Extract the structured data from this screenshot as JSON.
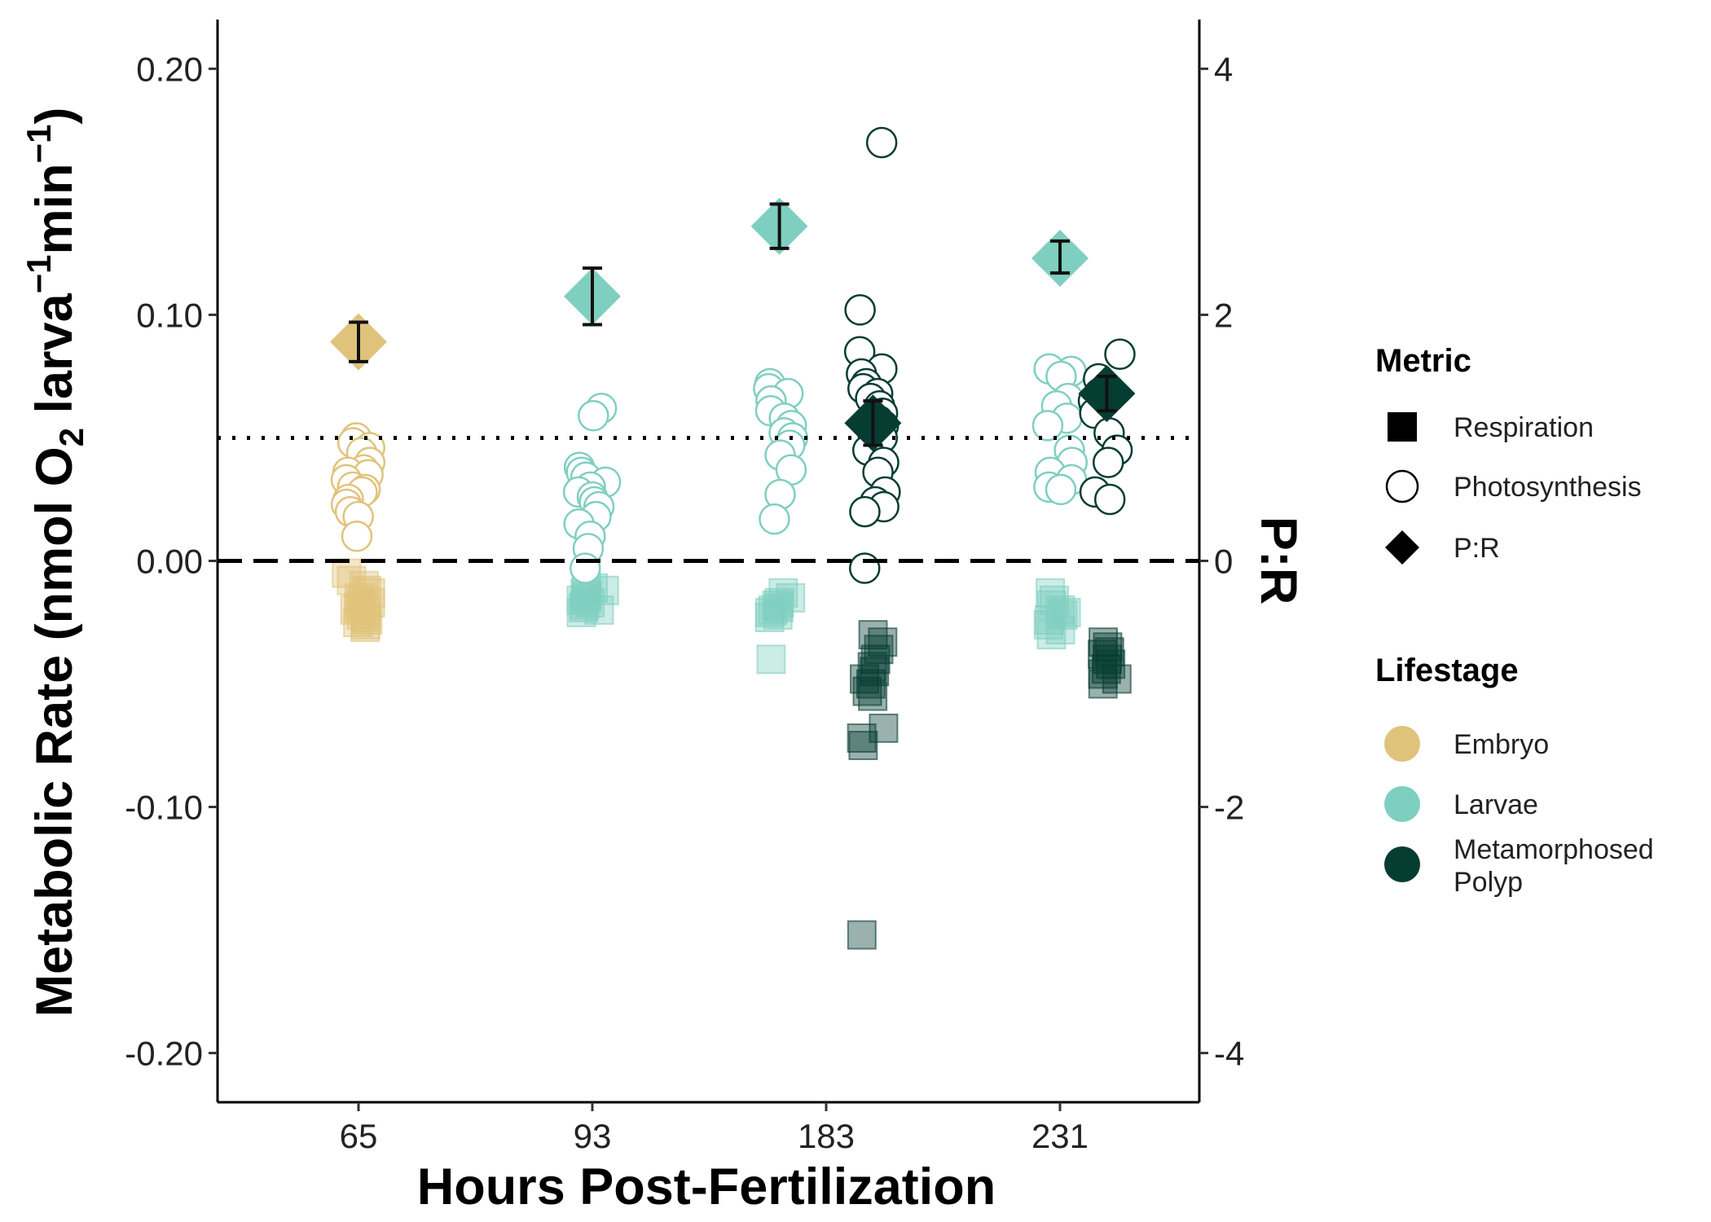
{
  "chart_data": {
    "type": "scatter",
    "title": "",
    "xlabel": "Hours Post-Fertilization",
    "ylabel": "Metabolic Rate (nmol O",
    "ylabel_sub": "2",
    "ylabel_mid": " larva",
    "ylabel_sup1": "−1",
    "ylabel_mid2": "min",
    "ylabel_sup2": "−1",
    "ylabel_end": ")",
    "y2label": "P:R",
    "categories": [
      "65",
      "93",
      "183",
      "231"
    ],
    "y_ticks": [
      "0.20",
      "0.10",
      "0.00",
      "-0.10",
      "-0.20"
    ],
    "y2_ticks": [
      "4",
      "2",
      "0",
      "-2",
      "-4"
    ],
    "ylim": [
      -0.22,
      0.22
    ],
    "y2lim": [
      -4.4,
      4.4
    ],
    "reference_lines": [
      {
        "axis": "y2",
        "value": 1,
        "style": "dotted"
      },
      {
        "axis": "y",
        "value": 0,
        "style": "dashed"
      }
    ],
    "grid": false,
    "legend_position": "right",
    "legend": {
      "metric_title": "Metric",
      "metric_items": [
        {
          "label": "Respiration",
          "shape": "square"
        },
        {
          "label": "Photosynthesis",
          "shape": "circle"
        },
        {
          "label": "P:R",
          "shape": "diamond"
        }
      ],
      "lifestage_title": "Lifestage",
      "lifestage_items": [
        {
          "label": "Embryo",
          "color": "#e0c37b"
        },
        {
          "label": "Larvae",
          "color": "#7fcfc0"
        },
        {
          "label": "Metamorphosed",
          "label2": "Polyp",
          "color": "#063d33"
        }
      ]
    },
    "series": [
      {
        "group": "65-Embryo",
        "x": 1,
        "color": "#e0c37b",
        "photosynthesis": [
          0.05,
          0.048,
          0.046,
          0.044,
          0.04,
          0.037,
          0.036,
          0.035,
          0.033,
          0.03,
          0.029,
          0.028,
          0.025,
          0.023,
          0.02,
          0.018,
          0.01
        ],
        "respiration": [
          -0.005,
          -0.008,
          -0.01,
          -0.012,
          -0.013,
          -0.015,
          -0.016,
          -0.017,
          -0.018,
          -0.019,
          -0.02,
          -0.021,
          -0.022,
          -0.023,
          -0.024,
          -0.025,
          -0.026,
          -0.027
        ],
        "pr_mean": 1.78,
        "pr_lo": 1.62,
        "pr_hi": 1.94
      },
      {
        "group": "93-Larvae",
        "x": 2,
        "color": "#7fcfc0",
        "photosynthesis": [
          0.062,
          0.059,
          0.038,
          0.036,
          0.034,
          0.032,
          0.03,
          0.028,
          0.026,
          0.024,
          0.022,
          0.018,
          0.015,
          0.01,
          0.005,
          -0.003
        ],
        "respiration": [
          -0.01,
          -0.011,
          -0.012,
          -0.013,
          -0.014,
          -0.015,
          -0.016,
          -0.017,
          -0.018,
          -0.019,
          -0.02,
          -0.021
        ],
        "pr_mean": 2.15,
        "pr_lo": 1.92,
        "pr_hi": 2.38
      },
      {
        "group": "183-Larvae",
        "x": 2.8,
        "color": "#7fcfc0",
        "photosynthesis": [
          0.072,
          0.07,
          0.068,
          0.065,
          0.061,
          0.058,
          0.055,
          0.052,
          0.05,
          0.047,
          0.043,
          0.037,
          0.027,
          0.017
        ],
        "respiration": [
          -0.013,
          -0.015,
          -0.017,
          -0.018,
          -0.019,
          -0.02,
          -0.021,
          -0.022,
          -0.023,
          -0.04
        ],
        "pr_mean": 2.72,
        "pr_lo": 2.54,
        "pr_hi": 2.9
      },
      {
        "group": "183-Polyp",
        "x": 3.2,
        "color": "#063d33",
        "photosynthesis": [
          0.17,
          0.102,
          0.085,
          0.078,
          0.076,
          0.072,
          0.07,
          0.068,
          0.066,
          0.063,
          0.06,
          0.057,
          0.055,
          0.052,
          0.05,
          0.045,
          0.04,
          0.036,
          0.028,
          0.024,
          0.022,
          0.02,
          -0.003
        ],
        "respiration": [
          -0.03,
          -0.033,
          -0.036,
          -0.04,
          -0.043,
          -0.045,
          -0.048,
          -0.05,
          -0.053,
          -0.055,
          -0.068,
          -0.072,
          -0.075,
          -0.152
        ],
        "pr_mean": 1.12,
        "pr_lo": 0.94,
        "pr_hi": 1.3
      },
      {
        "group": "231-Larvae",
        "x": 4,
        "color": "#7fcfc0",
        "photosynthesis": [
          0.078,
          0.077,
          0.075,
          0.066,
          0.063,
          0.058,
          0.055,
          0.045,
          0.04,
          0.036,
          0.033,
          0.03,
          0.029
        ],
        "respiration": [
          -0.013,
          -0.016,
          -0.018,
          -0.02,
          -0.021,
          -0.022,
          -0.024,
          -0.026,
          -0.028,
          -0.03
        ],
        "pr_mean": 2.46,
        "pr_lo": 2.34,
        "pr_hi": 2.6
      },
      {
        "group": "231-Polyp",
        "x": 4.2,
        "color": "#063d33",
        "photosynthesis": [
          0.084,
          0.074,
          0.068,
          0.065,
          0.06,
          0.052,
          0.045,
          0.04,
          0.028,
          0.025
        ],
        "respiration": [
          -0.033,
          -0.035,
          -0.037,
          -0.038,
          -0.04,
          -0.042,
          -0.044,
          -0.046,
          -0.048,
          -0.05
        ],
        "pr_mean": 1.36,
        "pr_lo": 1.22,
        "pr_hi": 1.5
      }
    ]
  }
}
